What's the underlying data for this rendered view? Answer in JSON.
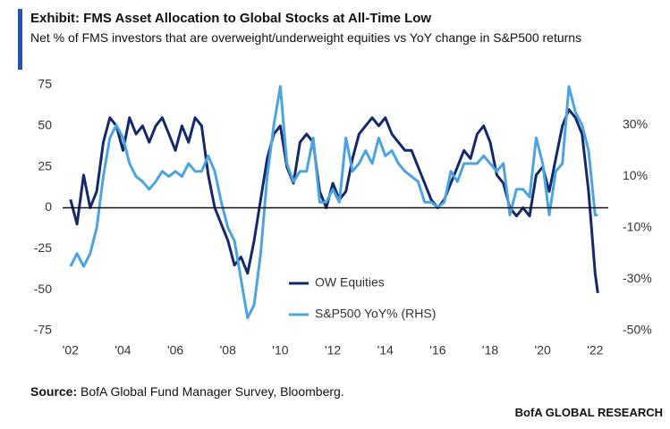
{
  "chart_data": {
    "type": "line",
    "title": "Exhibit: FMS Asset Allocation to Global Stocks at All-Time Low",
    "subtitle": "Net % of FMS investors that are overweight/underweight equities vs YoY change in S&P500 returns",
    "source_label": "Source:",
    "source_text": "BofA Global Fund Manager Survey, Bloomberg.",
    "footer": "BofA GLOBAL RESEARCH",
    "x": [
      2002,
      2002.25,
      2002.5,
      2002.75,
      2003,
      2003.25,
      2003.5,
      2003.75,
      2004,
      2004.25,
      2004.5,
      2004.75,
      2005,
      2005.25,
      2005.5,
      2005.75,
      2006,
      2006.25,
      2006.5,
      2006.75,
      2007,
      2007.25,
      2007.5,
      2007.75,
      2008,
      2008.25,
      2008.5,
      2008.75,
      2009,
      2009.25,
      2009.5,
      2009.75,
      2010,
      2010.25,
      2010.5,
      2010.75,
      2011,
      2011.25,
      2011.5,
      2011.75,
      2012,
      2012.25,
      2012.5,
      2012.75,
      2013,
      2013.25,
      2013.5,
      2013.75,
      2014,
      2014.25,
      2014.5,
      2014.75,
      2015,
      2015.25,
      2015.5,
      2015.75,
      2016,
      2016.25,
      2016.5,
      2016.75,
      2017,
      2017.25,
      2017.5,
      2017.75,
      2018,
      2018.25,
      2018.5,
      2018.75,
      2019,
      2019.25,
      2019.5,
      2019.75,
      2020,
      2020.25,
      2020.5,
      2020.75,
      2021,
      2021.25,
      2021.5,
      2021.75,
      2022,
      2022.1
    ],
    "series": [
      {
        "name": "OW Equities",
        "color": "#14296b",
        "axis": "y",
        "values": [
          5,
          -10,
          20,
          0,
          10,
          40,
          55,
          50,
          35,
          55,
          45,
          50,
          40,
          50,
          55,
          45,
          35,
          50,
          40,
          55,
          50,
          20,
          0,
          -10,
          -20,
          -35,
          -30,
          -40,
          -20,
          5,
          30,
          45,
          50,
          25,
          15,
          40,
          45,
          40,
          10,
          0,
          15,
          5,
          10,
          30,
          45,
          50,
          55,
          50,
          55,
          45,
          40,
          35,
          35,
          25,
          15,
          5,
          0,
          5,
          15,
          25,
          35,
          30,
          45,
          50,
          40,
          20,
          15,
          0,
          -5,
          0,
          -5,
          20,
          25,
          10,
          30,
          50,
          60,
          55,
          45,
          10,
          -40,
          -52
        ]
      },
      {
        "name": "S&P500 YoY% (RHS)",
        "color": "#4ba3e0",
        "axis": "y2",
        "values": [
          -25,
          -20,
          -25,
          -20,
          -10,
          10,
          25,
          30,
          25,
          15,
          10,
          8,
          5,
          8,
          12,
          10,
          12,
          10,
          15,
          12,
          12,
          18,
          12,
          0,
          -10,
          -15,
          -30,
          -45,
          -40,
          -20,
          10,
          30,
          45,
          15,
          8,
          12,
          12,
          25,
          0,
          0,
          5,
          0,
          25,
          12,
          15,
          20,
          15,
          25,
          18,
          20,
          15,
          12,
          10,
          8,
          0,
          0,
          -2,
          0,
          12,
          8,
          15,
          15,
          15,
          18,
          15,
          12,
          15,
          -5,
          5,
          5,
          2,
          25,
          15,
          -5,
          12,
          15,
          45,
          35,
          30,
          20,
          -5,
          -5
        ]
      }
    ],
    "xlim": [
      2001.7,
      2022.5
    ],
    "xticks": [
      {
        "value": 2002,
        "label": "'02"
      },
      {
        "value": 2004,
        "label": "'04"
      },
      {
        "value": 2006,
        "label": "'06"
      },
      {
        "value": 2008,
        "label": "'08"
      },
      {
        "value": 2010,
        "label": "'10"
      },
      {
        "value": 2012,
        "label": "'12"
      },
      {
        "value": 2014,
        "label": "'14"
      },
      {
        "value": 2016,
        "label": "'16"
      },
      {
        "value": 2018,
        "label": "'18"
      },
      {
        "value": 2020,
        "label": "'20"
      },
      {
        "value": 2022,
        "label": "'22"
      }
    ],
    "ylim": [
      -75,
      75
    ],
    "yticks": [
      -75,
      -50,
      -25,
      0,
      25,
      50,
      75
    ],
    "y2lim": [
      -50,
      45.6
    ],
    "y2ticks": [
      {
        "value": -50,
        "label": "-50%"
      },
      {
        "value": -30,
        "label": "-30%"
      },
      {
        "value": -10,
        "label": "-10%"
      },
      {
        "value": 10,
        "label": "10%"
      },
      {
        "value": 30,
        "label": "30%"
      }
    ]
  }
}
